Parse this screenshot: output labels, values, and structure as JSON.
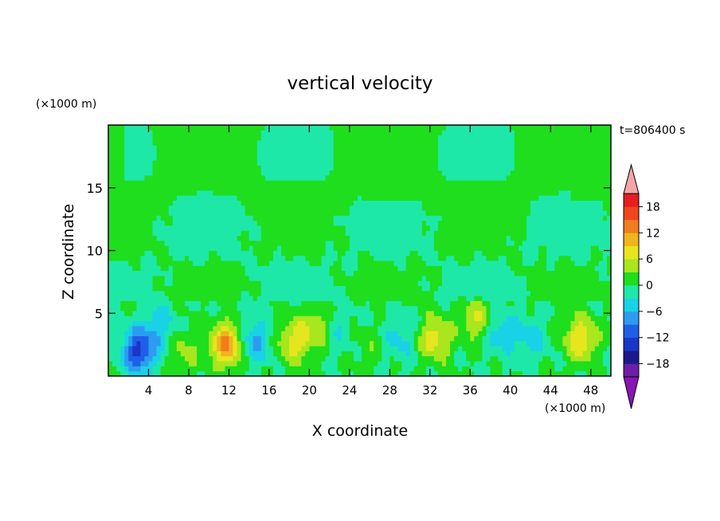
{
  "chart_data": {
    "type": "heatmap",
    "title": "vertical velocity",
    "xlabel": "X coordinate",
    "ylabel": "Z coordinate",
    "x_unit_label": "(×1000 m)",
    "y_unit_label": "(×1000 m)",
    "time_label": "t=806400 s",
    "xlim": [
      0,
      50
    ],
    "ylim": [
      0,
      20
    ],
    "x_ticks": [
      4,
      8,
      12,
      16,
      20,
      24,
      28,
      32,
      36,
      40,
      44,
      48
    ],
    "y_ticks": [
      5,
      10,
      15
    ],
    "colorbar": {
      "levels": [
        -21,
        -18,
        -15,
        -12,
        -9,
        -6,
        -3,
        0,
        3,
        6,
        9,
        12,
        15,
        18,
        21
      ],
      "tick_labels": [
        "18",
        "12",
        "6",
        "0",
        "−6",
        "−12",
        "−18"
      ],
      "tick_values": [
        18,
        12,
        6,
        0,
        -6,
        -12,
        -18
      ],
      "colors": [
        "#6a1fa6",
        "#1a1a8c",
        "#1a36c8",
        "#1f5fe8",
        "#2d9cf0",
        "#19d2e6",
        "#1ee8a8",
        "#1ede1e",
        "#a8e61e",
        "#e6e61e",
        "#f0b41e",
        "#f07d1e",
        "#f0461e",
        "#e61e1e"
      ],
      "over_color": "#f4a6a6",
      "under_color": "#8a14b4"
    },
    "features": [
      {
        "x": 3.0,
        "z": 2.0,
        "value": -13
      },
      {
        "x": 11.8,
        "z": 2.5,
        "value": 13
      },
      {
        "x": 18.5,
        "z": 2.8,
        "value": 8
      },
      {
        "x": 21.0,
        "z": 4.0,
        "value": 6
      },
      {
        "x": 32.5,
        "z": 3.0,
        "value": 8
      },
      {
        "x": 36.5,
        "z": 4.5,
        "value": 6
      },
      {
        "x": 47.0,
        "z": 3.0,
        "value": 9
      },
      {
        "x": 7.5,
        "z": 2.0,
        "value": 4
      },
      {
        "x": 26.0,
        "z": 2.5,
        "value": 2
      },
      {
        "x": 5.0,
        "z": 4.0,
        "value": -5
      },
      {
        "x": 14.5,
        "z": 2.8,
        "value": -7
      },
      {
        "x": 22.5,
        "z": 3.8,
        "value": -4
      },
      {
        "x": 29.0,
        "z": 3.0,
        "value": -4
      },
      {
        "x": 39.0,
        "z": 3.5,
        "value": -5
      },
      {
        "x": 42.0,
        "z": 3.0,
        "value": -4
      }
    ]
  }
}
